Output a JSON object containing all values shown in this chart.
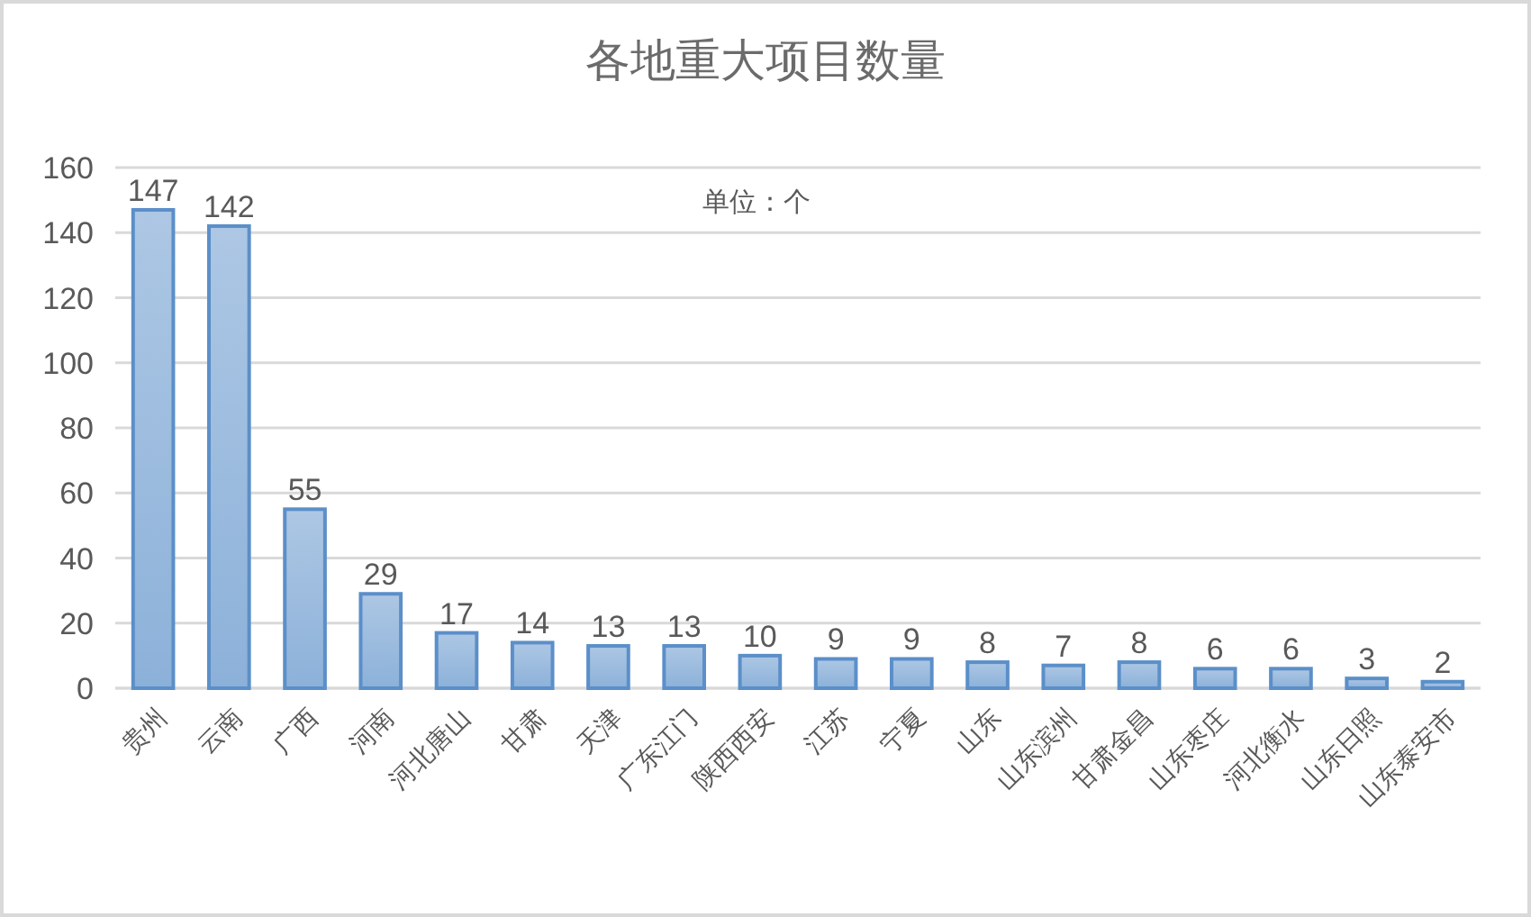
{
  "chart_data": {
    "type": "bar",
    "title": "各地重大项目数量",
    "annotations": [
      "单位：个"
    ],
    "categories": [
      "贵州",
      "云南",
      "广西",
      "河南",
      "河北唐山",
      "甘肃",
      "天津",
      "广东江门",
      "陕西西安",
      "江苏",
      "宁夏",
      "山东",
      "山东滨州",
      "甘肃金昌",
      "山东枣庄",
      "河北衡水",
      "山东日照",
      "山东泰安市"
    ],
    "values": [
      147,
      142,
      55,
      29,
      17,
      14,
      13,
      13,
      10,
      9,
      9,
      8,
      7,
      8,
      6,
      6,
      3,
      2
    ],
    "color": "#5b8fc9",
    "ylim": [
      0,
      160
    ],
    "yticks": [
      0,
      20,
      40,
      60,
      80,
      100,
      120,
      140,
      160
    ],
    "grid": "y",
    "data_labels": true
  }
}
